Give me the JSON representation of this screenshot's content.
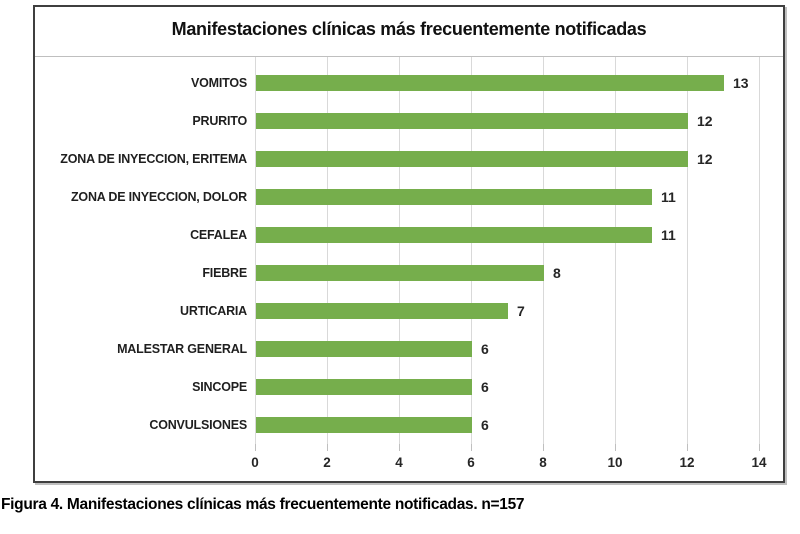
{
  "page": {
    "caption": "Figura 4. Manifestaciones clínicas más frecuentemente notificadas. n=157"
  },
  "chart_data": {
    "type": "bar",
    "orientation": "horizontal",
    "title": "Manifestaciones clínicas más frecuentemente notificadas",
    "categories": [
      "VOMITOS",
      "PRURITO",
      "ZONA DE INYECCION, ERITEMA",
      "ZONA DE INYECCION, DOLOR",
      "CEFALEA",
      "FIEBRE",
      "URTICARIA",
      "MALESTAR GENERAL",
      "SINCOPE",
      "CONVULSIONES"
    ],
    "values": [
      13,
      12,
      12,
      11,
      11,
      8,
      7,
      6,
      6,
      6
    ],
    "data_labels": [
      13,
      12,
      12,
      11,
      11,
      8,
      7,
      6,
      6,
      6
    ],
    "xlabel": "",
    "ylabel": "",
    "xlim": [
      0,
      14
    ],
    "x_ticks": [
      0,
      2,
      4,
      6,
      8,
      10,
      12,
      14
    ],
    "grid": true,
    "legend": false,
    "bar_color": "#76ae4c",
    "gridline_color": "#d9d9d9"
  }
}
